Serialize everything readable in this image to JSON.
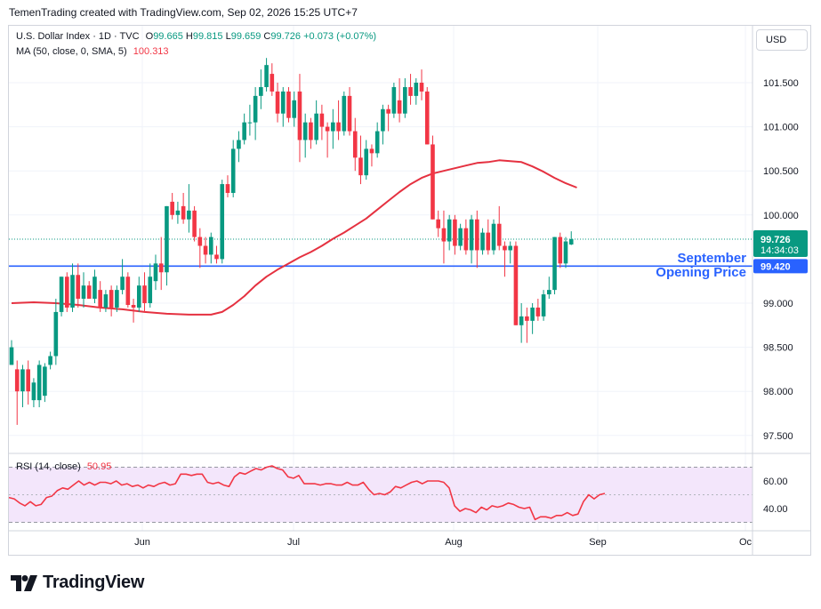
{
  "header": {
    "attribution": "TemenTrading created with TradingView.com, Sep 02, 2026 15:25 UTC+7"
  },
  "legend": {
    "symbol": "U.S. Dollar Index · 1D · TVC",
    "open_label": "O",
    "open": "99.665",
    "high_label": "H",
    "high": "99.815",
    "low_label": "L",
    "low": "99.659",
    "close_label": "C",
    "close": "99.726",
    "change": "+0.073 (+0.07%)",
    "ma_label": "MA (50, close, 0, SMA, 5)",
    "ma_value": "100.313"
  },
  "rsi_legend": {
    "label": "RSI (14, close)",
    "value": "50.95"
  },
  "currency_button": "USD",
  "price_badge": {
    "price": "99.726",
    "countdown": "14:34:03"
  },
  "level_badge": "99.420",
  "annotation": {
    "line1": "September",
    "line2": "Opening Price"
  },
  "footer": {
    "brand": "TradingView"
  },
  "colors": {
    "up": "#089981",
    "down": "#f23645",
    "ma": "#e53140",
    "level": "#2962ff",
    "rsi_line": "#f23645",
    "rsi_band": "#f3e6fb"
  },
  "chart_data": [
    {
      "type": "candlestick",
      "title": "U.S. Dollar Index · 1D · TVC",
      "y_ticks": [
        "101.500",
        "101.000",
        "100.500",
        "100.000",
        "99.000",
        "98.500",
        "98.000",
        "97.500"
      ],
      "x_ticks": [
        "Jun",
        "Jul",
        "Aug",
        "Sep",
        "Oc"
      ],
      "ylim": [
        97.35,
        101.85
      ],
      "horizontal_level": {
        "value": 99.42,
        "label": "September Opening Price"
      },
      "last_price": 99.726,
      "candles": [
        {
          "o": 98.3,
          "h": 98.58,
          "l": 98.3,
          "c": 98.5
        },
        {
          "o": 98.25,
          "h": 98.35,
          "l": 97.62,
          "c": 98.0
        },
        {
          "o": 98.0,
          "h": 98.3,
          "l": 97.82,
          "c": 98.25
        },
        {
          "o": 98.25,
          "h": 98.35,
          "l": 97.85,
          "c": 98.0
        },
        {
          "o": 97.9,
          "h": 98.15,
          "l": 97.82,
          "c": 98.1
        },
        {
          "o": 97.9,
          "h": 98.35,
          "l": 97.82,
          "c": 98.3
        },
        {
          "o": 97.95,
          "h": 98.32,
          "l": 97.88,
          "c": 98.28
        },
        {
          "o": 98.3,
          "h": 98.45,
          "l": 98.25,
          "c": 98.4
        },
        {
          "o": 98.4,
          "h": 99.05,
          "l": 98.3,
          "c": 98.9
        },
        {
          "o": 98.9,
          "h": 99.3,
          "l": 98.85,
          "c": 99.3
        },
        {
          "o": 99.3,
          "h": 99.35,
          "l": 98.9,
          "c": 98.95
        },
        {
          "o": 98.95,
          "h": 99.45,
          "l": 98.9,
          "c": 99.32
        },
        {
          "o": 99.32,
          "h": 99.45,
          "l": 98.95,
          "c": 99.05
        },
        {
          "o": 99.05,
          "h": 99.35,
          "l": 98.95,
          "c": 99.2
        },
        {
          "o": 99.2,
          "h": 99.25,
          "l": 99.05,
          "c": 99.05
        },
        {
          "o": 99.05,
          "h": 99.38,
          "l": 99.0,
          "c": 99.3
        },
        {
          "o": 99.15,
          "h": 99.25,
          "l": 98.9,
          "c": 98.95
        },
        {
          "o": 98.95,
          "h": 99.15,
          "l": 98.9,
          "c": 99.1
        },
        {
          "o": 99.15,
          "h": 99.2,
          "l": 98.85,
          "c": 98.95
        },
        {
          "o": 98.95,
          "h": 99.2,
          "l": 98.9,
          "c": 99.15
        },
        {
          "o": 99.15,
          "h": 99.5,
          "l": 99.1,
          "c": 99.3
        },
        {
          "o": 99.3,
          "h": 99.35,
          "l": 98.95,
          "c": 98.98
        },
        {
          "o": 98.98,
          "h": 99.05,
          "l": 98.78,
          "c": 98.95
        },
        {
          "o": 98.95,
          "h": 99.3,
          "l": 98.9,
          "c": 99.2
        },
        {
          "o": 99.2,
          "h": 99.35,
          "l": 98.9,
          "c": 99.0
        },
        {
          "o": 99.0,
          "h": 99.45,
          "l": 98.95,
          "c": 99.3
        },
        {
          "o": 99.25,
          "h": 99.55,
          "l": 99.15,
          "c": 99.45
        },
        {
          "o": 99.45,
          "h": 99.75,
          "l": 99.15,
          "c": 99.35
        },
        {
          "o": 99.35,
          "h": 100.1,
          "l": 99.2,
          "c": 100.1
        },
        {
          "o": 100.15,
          "h": 100.25,
          "l": 99.95,
          "c": 100.0
        },
        {
          "o": 100.0,
          "h": 100.15,
          "l": 99.9,
          "c": 100.05
        },
        {
          "o": 100.1,
          "h": 100.25,
          "l": 99.9,
          "c": 99.95
        },
        {
          "o": 99.95,
          "h": 100.35,
          "l": 99.8,
          "c": 100.05
        },
        {
          "o": 100.05,
          "h": 100.1,
          "l": 99.7,
          "c": 99.75
        },
        {
          "o": 99.75,
          "h": 99.85,
          "l": 99.4,
          "c": 99.65
        },
        {
          "o": 99.65,
          "h": 99.75,
          "l": 99.45,
          "c": 99.55
        },
        {
          "o": 99.55,
          "h": 99.8,
          "l": 99.45,
          "c": 99.75
        },
        {
          "o": 99.55,
          "h": 99.65,
          "l": 99.45,
          "c": 99.5
        },
        {
          "o": 99.5,
          "h": 100.4,
          "l": 99.45,
          "c": 100.35
        },
        {
          "o": 100.35,
          "h": 100.45,
          "l": 100.2,
          "c": 100.25
        },
        {
          "o": 100.25,
          "h": 100.85,
          "l": 100.2,
          "c": 100.75
        },
        {
          "o": 100.75,
          "h": 100.95,
          "l": 100.6,
          "c": 100.85
        },
        {
          "o": 100.85,
          "h": 101.15,
          "l": 100.8,
          "c": 101.05
        },
        {
          "o": 101.05,
          "h": 101.25,
          "l": 100.9,
          "c": 101.05
        },
        {
          "o": 101.05,
          "h": 101.45,
          "l": 100.85,
          "c": 101.35
        },
        {
          "o": 101.35,
          "h": 101.65,
          "l": 101.2,
          "c": 101.45
        },
        {
          "o": 101.45,
          "h": 101.78,
          "l": 101.4,
          "c": 101.7
        },
        {
          "o": 101.6,
          "h": 101.72,
          "l": 101.35,
          "c": 101.4
        },
        {
          "o": 101.4,
          "h": 101.5,
          "l": 101.05,
          "c": 101.15
        },
        {
          "o": 101.15,
          "h": 101.45,
          "l": 101.0,
          "c": 101.4
        },
        {
          "o": 101.4,
          "h": 101.45,
          "l": 101.05,
          "c": 101.1
        },
        {
          "o": 101.1,
          "h": 101.4,
          "l": 101.0,
          "c": 101.3
        },
        {
          "o": 101.4,
          "h": 101.6,
          "l": 100.6,
          "c": 100.85
        },
        {
          "o": 100.85,
          "h": 101.15,
          "l": 100.65,
          "c": 101.05
        },
        {
          "o": 101.05,
          "h": 101.1,
          "l": 100.75,
          "c": 100.85
        },
        {
          "o": 100.85,
          "h": 101.3,
          "l": 100.8,
          "c": 101.15
        },
        {
          "o": 101.15,
          "h": 101.25,
          "l": 100.85,
          "c": 101.0
        },
        {
          "o": 101.0,
          "h": 101.05,
          "l": 100.65,
          "c": 100.95
        },
        {
          "o": 100.95,
          "h": 101.2,
          "l": 100.75,
          "c": 101.05
        },
        {
          "o": 101.05,
          "h": 101.3,
          "l": 100.85,
          "c": 100.95
        },
        {
          "o": 100.95,
          "h": 101.4,
          "l": 100.9,
          "c": 101.35
        },
        {
          "o": 101.35,
          "h": 101.45,
          "l": 100.9,
          "c": 100.95
        },
        {
          "o": 100.95,
          "h": 101.1,
          "l": 100.5,
          "c": 100.65
        },
        {
          "o": 100.65,
          "h": 100.9,
          "l": 100.35,
          "c": 100.45
        },
        {
          "o": 100.45,
          "h": 100.85,
          "l": 100.4,
          "c": 100.75
        },
        {
          "o": 100.75,
          "h": 100.8,
          "l": 100.55,
          "c": 100.7
        },
        {
          "o": 100.7,
          "h": 101.05,
          "l": 100.65,
          "c": 100.95
        },
        {
          "o": 100.95,
          "h": 101.25,
          "l": 100.8,
          "c": 101.2
        },
        {
          "o": 101.2,
          "h": 101.25,
          "l": 100.95,
          "c": 101.15
        },
        {
          "o": 101.15,
          "h": 101.5,
          "l": 101.1,
          "c": 101.45
        },
        {
          "o": 101.3,
          "h": 101.55,
          "l": 101.05,
          "c": 101.15
        },
        {
          "o": 101.15,
          "h": 101.55,
          "l": 101.1,
          "c": 101.45
        },
        {
          "o": 101.45,
          "h": 101.6,
          "l": 101.25,
          "c": 101.35
        },
        {
          "o": 101.35,
          "h": 101.55,
          "l": 101.25,
          "c": 101.5
        },
        {
          "o": 101.5,
          "h": 101.65,
          "l": 101.3,
          "c": 101.4
        },
        {
          "o": 101.4,
          "h": 101.45,
          "l": 100.8,
          "c": 100.8
        },
        {
          "o": 100.8,
          "h": 100.9,
          "l": 99.95,
          "c": 99.95
        },
        {
          "o": 99.95,
          "h": 100.05,
          "l": 99.75,
          "c": 99.85
        },
        {
          "o": 99.85,
          "h": 100.05,
          "l": 99.45,
          "c": 99.7
        },
        {
          "o": 99.7,
          "h": 100.0,
          "l": 99.6,
          "c": 99.95
        },
        {
          "o": 99.95,
          "h": 100.0,
          "l": 99.55,
          "c": 99.65
        },
        {
          "o": 99.65,
          "h": 99.9,
          "l": 99.6,
          "c": 99.85
        },
        {
          "o": 99.85,
          "h": 99.95,
          "l": 99.55,
          "c": 99.6
        },
        {
          "o": 99.6,
          "h": 100.0,
          "l": 99.45,
          "c": 99.95
        },
        {
          "o": 99.95,
          "h": 100.05,
          "l": 99.4,
          "c": 99.6
        },
        {
          "o": 99.6,
          "h": 99.85,
          "l": 99.55,
          "c": 99.8
        },
        {
          "o": 99.8,
          "h": 99.95,
          "l": 99.55,
          "c": 99.6
        },
        {
          "o": 99.6,
          "h": 99.95,
          "l": 99.55,
          "c": 99.9
        },
        {
          "o": 99.9,
          "h": 100.1,
          "l": 99.6,
          "c": 99.65
        },
        {
          "o": 99.65,
          "h": 99.7,
          "l": 99.3,
          "c": 99.6
        },
        {
          "o": 99.6,
          "h": 99.7,
          "l": 99.45,
          "c": 99.65
        },
        {
          "o": 99.65,
          "h": 99.7,
          "l": 98.75,
          "c": 98.75
        },
        {
          "o": 98.75,
          "h": 99.0,
          "l": 98.55,
          "c": 98.85
        },
        {
          "o": 98.85,
          "h": 98.95,
          "l": 98.55,
          "c": 98.8
        },
        {
          "o": 98.8,
          "h": 99.0,
          "l": 98.65,
          "c": 98.95
        },
        {
          "o": 98.95,
          "h": 99.05,
          "l": 98.8,
          "c": 98.85
        },
        {
          "o": 98.85,
          "h": 99.15,
          "l": 98.8,
          "c": 99.1
        },
        {
          "o": 99.1,
          "h": 99.3,
          "l": 99.05,
          "c": 99.15
        },
        {
          "o": 99.15,
          "h": 99.75,
          "l": 99.1,
          "c": 99.75
        },
        {
          "o": 99.75,
          "h": 99.8,
          "l": 99.4,
          "c": 99.45
        },
        {
          "o": 99.45,
          "h": 99.75,
          "l": 99.4,
          "c": 99.7
        },
        {
          "o": 99.665,
          "h": 99.815,
          "l": 99.659,
          "c": 99.726
        }
      ],
      "ma50": [
        {
          "i": 0,
          "v": 99.0
        },
        {
          "i": 4,
          "v": 99.01
        },
        {
          "i": 8,
          "v": 99.0
        },
        {
          "i": 12,
          "v": 98.98
        },
        {
          "i": 16,
          "v": 98.95
        },
        {
          "i": 20,
          "v": 98.93
        },
        {
          "i": 24,
          "v": 98.9
        },
        {
          "i": 28,
          "v": 98.88
        },
        {
          "i": 32,
          "v": 98.87
        },
        {
          "i": 36,
          "v": 98.87
        },
        {
          "i": 38,
          "v": 98.9
        },
        {
          "i": 40,
          "v": 98.98
        },
        {
          "i": 42,
          "v": 99.08
        },
        {
          "i": 44,
          "v": 99.2
        },
        {
          "i": 46,
          "v": 99.3
        },
        {
          "i": 48,
          "v": 99.38
        },
        {
          "i": 50,
          "v": 99.45
        },
        {
          "i": 52,
          "v": 99.52
        },
        {
          "i": 54,
          "v": 99.58
        },
        {
          "i": 56,
          "v": 99.65
        },
        {
          "i": 58,
          "v": 99.73
        },
        {
          "i": 60,
          "v": 99.8
        },
        {
          "i": 62,
          "v": 99.88
        },
        {
          "i": 64,
          "v": 99.96
        },
        {
          "i": 66,
          "v": 100.06
        },
        {
          "i": 68,
          "v": 100.16
        },
        {
          "i": 70,
          "v": 100.26
        },
        {
          "i": 72,
          "v": 100.35
        },
        {
          "i": 74,
          "v": 100.42
        },
        {
          "i": 76,
          "v": 100.47
        },
        {
          "i": 78,
          "v": 100.5
        },
        {
          "i": 80,
          "v": 100.53
        },
        {
          "i": 82,
          "v": 100.56
        },
        {
          "i": 84,
          "v": 100.59
        },
        {
          "i": 86,
          "v": 100.6
        },
        {
          "i": 88,
          "v": 100.62
        },
        {
          "i": 90,
          "v": 100.61
        },
        {
          "i": 92,
          "v": 100.6
        },
        {
          "i": 94,
          "v": 100.55
        },
        {
          "i": 96,
          "v": 100.49
        },
        {
          "i": 98,
          "v": 100.42
        },
        {
          "i": 100,
          "v": 100.36
        },
        {
          "i": 102,
          "v": 100.31
        }
      ],
      "series": [
        {
          "name": "MA (50, close, 0, SMA, 5)"
        }
      ]
    },
    {
      "type": "line",
      "title": "RSI (14, close)",
      "y_ticks": [
        "60.00",
        "40.00"
      ],
      "ylim": [
        25,
        76
      ],
      "band": [
        30,
        70
      ],
      "last_value": 50.95,
      "values": [
        48,
        47,
        44,
        42,
        45,
        42,
        43,
        48,
        49,
        53,
        55,
        54,
        57,
        60,
        57,
        59,
        57,
        59,
        59,
        58,
        60,
        57,
        58,
        56,
        57,
        55,
        57,
        56,
        58,
        59,
        57,
        58,
        65,
        65,
        64,
        65,
        65,
        59,
        58,
        59,
        57,
        56,
        63,
        66,
        65,
        67,
        69,
        68,
        70,
        71,
        69,
        68,
        63,
        62,
        64,
        58,
        58,
        58,
        57,
        58,
        58,
        57,
        57,
        59,
        57,
        57,
        59,
        54,
        50,
        51,
        50,
        52,
        56,
        55,
        57,
        59,
        60,
        58,
        60,
        60,
        60,
        59,
        55,
        42,
        38,
        40,
        39,
        37,
        41,
        39,
        42,
        41,
        42,
        44,
        43,
        41,
        40,
        41,
        32,
        34,
        34,
        33,
        35,
        35,
        37,
        35,
        36,
        45,
        50,
        47,
        50,
        51
      ]
    }
  ]
}
